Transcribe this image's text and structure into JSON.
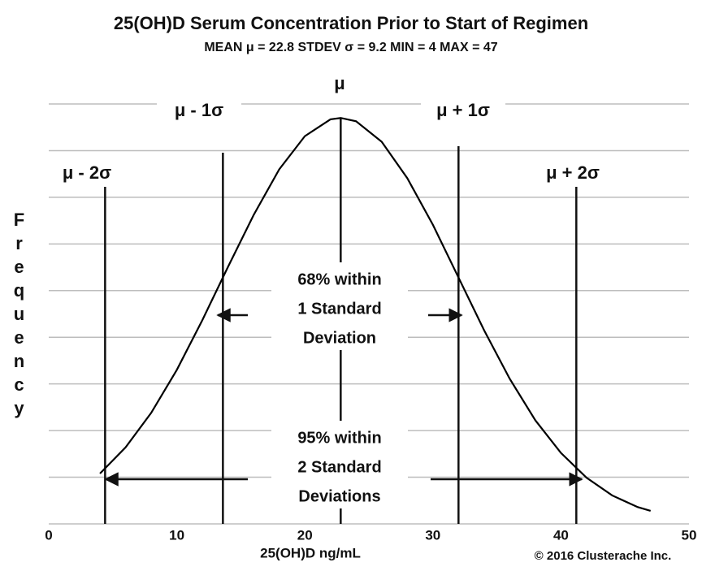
{
  "chart_data": {
    "type": "line",
    "title": "25(OH)D Serum Concentration Prior to Start of Regimen",
    "subtitle": "MEAN μ = 22.8  STDEV σ = 9.2  MIN = 4  MAX = 47",
    "xlabel": "25(OH)D ng/mL",
    "ylabel": "Frequency",
    "credit": "© 2016 Clusterache Inc.",
    "x": [
      4,
      6,
      8,
      10,
      12,
      14,
      16,
      18,
      20,
      22,
      22.8,
      24,
      26,
      28,
      30,
      32,
      34,
      36,
      38,
      40,
      42,
      44,
      46,
      47
    ],
    "values": [
      1.08,
      1.64,
      2.38,
      3.3,
      4.37,
      5.51,
      6.62,
      7.6,
      8.31,
      8.67,
      8.7,
      8.63,
      8.19,
      7.41,
      6.41,
      5.28,
      4.15,
      3.11,
      2.22,
      1.52,
      0.99,
      0.61,
      0.36,
      0.28
    ],
    "color": "#000000",
    "xlim": [
      0,
      50
    ],
    "xticks": [
      0,
      10,
      20,
      30,
      40,
      50
    ],
    "ylim": [
      0,
      9
    ],
    "yticks": [
      0,
      1,
      2,
      3,
      4,
      5,
      6,
      7,
      8,
      9
    ],
    "grid": true,
    "reference_lines": [
      {
        "x": 4.4,
        "label": "μ - 2σ"
      },
      {
        "x": 13.6,
        "label": "μ - 1σ"
      },
      {
        "x": 22.8,
        "label": "μ"
      },
      {
        "x": 32,
        "label": "μ + 1σ"
      },
      {
        "x": 41.2,
        "label": "μ + 2σ"
      }
    ],
    "annotations": [
      {
        "lines": [
          "68% within",
          "1 Standard",
          "Deviation"
        ]
      },
      {
        "lines": [
          "95% within",
          "2 Standard",
          "Deviations"
        ]
      }
    ]
  }
}
